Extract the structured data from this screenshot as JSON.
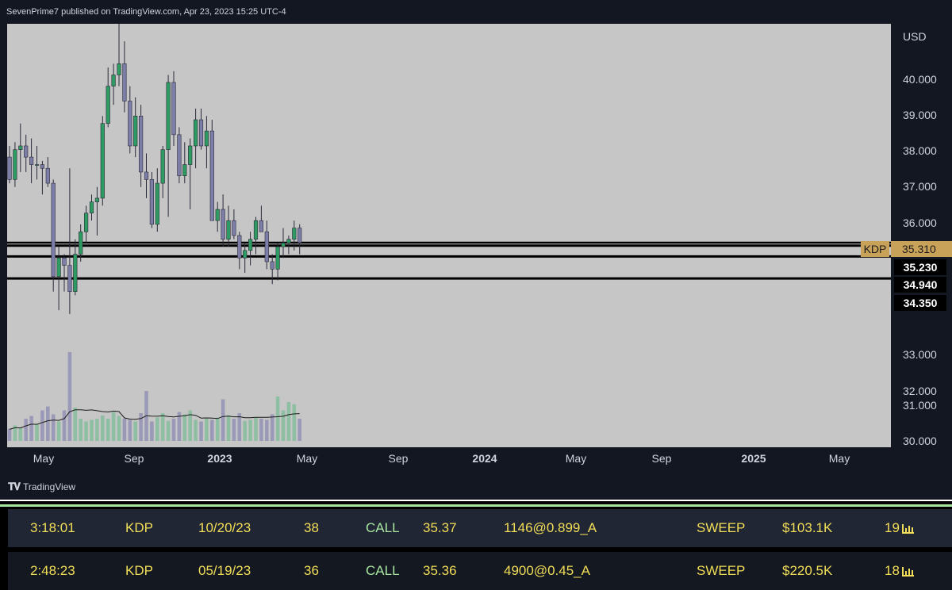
{
  "header": {
    "published_text": "SevenPrime7 published on TradingView.com, Apr 23, 2023 15:25 UTC-4"
  },
  "price_axis": {
    "currency": "USD",
    "ticks": [
      "40.000",
      "39.000",
      "38.000",
      "37.000",
      "36.000",
      "33.000",
      "32.000",
      "31.000",
      "30.000"
    ],
    "symbol": "KDP",
    "last_price": "35.310",
    "levels": [
      "35.230",
      "34.940",
      "34.350"
    ]
  },
  "time_axis": {
    "labels": [
      "May",
      "Sep",
      "2023",
      "May",
      "Sep",
      "2024",
      "May",
      "Sep",
      "2025",
      "May"
    ]
  },
  "brand": {
    "name": "TradingView"
  },
  "colors": {
    "up_candle": "#2e9b63",
    "down_candle": "#7d7ea8",
    "plot_bg": "#c6c6c6",
    "level_line": "#000000",
    "flow_text": "#f2de58",
    "call_text": "#a8e6a1"
  },
  "chart_data": {
    "type": "candlestick",
    "symbol": "KDP",
    "interval": "weekly",
    "ylim": [
      30,
      41
    ],
    "ohlc": [
      [
        37.6,
        37.9,
        36.9,
        37.0
      ],
      [
        37.0,
        38.0,
        36.8,
        37.8
      ],
      [
        37.8,
        38.5,
        37.2,
        37.9
      ],
      [
        37.9,
        38.2,
        37.2,
        37.6
      ],
      [
        37.6,
        38.1,
        36.9,
        37.4
      ],
      [
        37.4,
        37.9,
        37.0,
        37.4
      ],
      [
        37.4,
        37.5,
        36.6,
        37.3
      ],
      [
        37.3,
        37.6,
        36.8,
        36.9
      ],
      [
        36.9,
        37.0,
        34.0,
        34.4
      ],
      [
        34.4,
        35.2,
        33.5,
        34.9
      ],
      [
        34.9,
        35.0,
        34.0,
        34.7
      ],
      [
        34.7,
        37.3,
        33.4,
        34.0
      ],
      [
        34.0,
        35.4,
        33.9,
        35.0
      ],
      [
        35.0,
        35.8,
        34.8,
        35.6
      ],
      [
        35.6,
        36.3,
        35.3,
        36.1
      ],
      [
        36.1,
        36.6,
        35.9,
        36.4
      ],
      [
        36.4,
        36.8,
        35.5,
        36.5
      ],
      [
        36.5,
        38.7,
        36.3,
        38.5
      ],
      [
        38.5,
        40.0,
        38.4,
        39.5
      ],
      [
        39.5,
        40.1,
        39.0,
        39.8
      ],
      [
        39.8,
        41.3,
        39.5,
        40.1
      ],
      [
        40.1,
        40.7,
        38.8,
        39.1
      ],
      [
        39.1,
        39.5,
        37.7,
        37.9
      ],
      [
        37.9,
        39.2,
        37.6,
        38.7
      ],
      [
        38.7,
        39.0,
        36.8,
        37.2
      ],
      [
        37.2,
        37.7,
        36.5,
        37.0
      ],
      [
        37.0,
        37.2,
        35.7,
        35.8
      ],
      [
        35.8,
        37.3,
        35.6,
        36.9
      ],
      [
        36.9,
        37.9,
        36.5,
        37.8
      ],
      [
        37.8,
        39.8,
        36.0,
        39.6
      ],
      [
        39.6,
        39.9,
        37.9,
        38.2
      ],
      [
        38.2,
        38.4,
        36.9,
        37.1
      ],
      [
        37.1,
        38.0,
        36.9,
        37.4
      ],
      [
        37.4,
        38.1,
        36.2,
        37.9
      ],
      [
        37.9,
        38.9,
        37.3,
        38.6
      ],
      [
        38.6,
        38.9,
        37.8,
        37.9
      ],
      [
        37.9,
        38.7,
        37.3,
        38.3
      ],
      [
        38.3,
        38.6,
        36.0,
        35.9
      ],
      [
        35.9,
        36.4,
        35.6,
        36.2
      ],
      [
        36.2,
        36.6,
        35.2,
        35.4
      ],
      [
        35.4,
        36.3,
        35.2,
        35.9
      ],
      [
        35.9,
        36.2,
        35.4,
        35.5
      ],
      [
        35.5,
        35.6,
        34.6,
        34.9
      ],
      [
        34.9,
        35.3,
        34.5,
        35.1
      ],
      [
        35.1,
        35.6,
        34.7,
        35.4
      ],
      [
        35.4,
        36.0,
        35.0,
        35.9
      ],
      [
        35.9,
        36.3,
        35.7,
        35.6
      ],
      [
        35.6,
        35.9,
        34.6,
        34.8
      ],
      [
        34.8,
        35.0,
        34.2,
        34.6
      ],
      [
        34.6,
        35.3,
        34.3,
        35.2
      ],
      [
        35.2,
        35.7,
        34.9,
        35.3
      ],
      [
        35.3,
        35.5,
        35.0,
        35.4
      ],
      [
        35.4,
        35.9,
        35.1,
        35.7
      ],
      [
        35.7,
        35.8,
        35.0,
        35.31
      ]
    ],
    "volume_relative": [
      0.22,
      0.28,
      0.24,
      0.4,
      0.45,
      0.3,
      0.55,
      0.62,
      0.48,
      0.35,
      0.55,
      1.6,
      0.6,
      0.4,
      0.35,
      0.38,
      0.4,
      0.46,
      0.4,
      0.52,
      0.45,
      0.4,
      0.38,
      0.35,
      0.5,
      0.9,
      0.35,
      0.42,
      0.5,
      0.36,
      0.4,
      0.52,
      0.48,
      0.55,
      0.38,
      0.35,
      0.4,
      0.38,
      0.42,
      0.75,
      0.46,
      0.4,
      0.5,
      0.36,
      0.38,
      0.42,
      0.4,
      0.38,
      0.48,
      0.8,
      0.55,
      0.7,
      0.66,
      0.4
    ],
    "horizontal_levels": [
      35.31,
      35.23,
      34.94,
      34.35
    ],
    "x_labels": [
      "May",
      "Sep",
      "2023",
      "May",
      "Sep",
      "2024",
      "May",
      "Sep",
      "2025",
      "May"
    ]
  },
  "flow_rows": [
    {
      "time": "3:18:01",
      "ticker": "KDP",
      "expiry": "10/20/23",
      "strike": "38",
      "type": "CALL",
      "spot": "35.37",
      "size_price": "1146@0.899_A",
      "order": "SWEEP",
      "premium": "$103.1K",
      "count": "19"
    },
    {
      "time": "2:48:23",
      "ticker": "KDP",
      "expiry": "05/19/23",
      "strike": "36",
      "type": "CALL",
      "spot": "35.36",
      "size_price": "4900@0.45_A",
      "order": "SWEEP",
      "premium": "$220.5K",
      "count": "18"
    }
  ]
}
